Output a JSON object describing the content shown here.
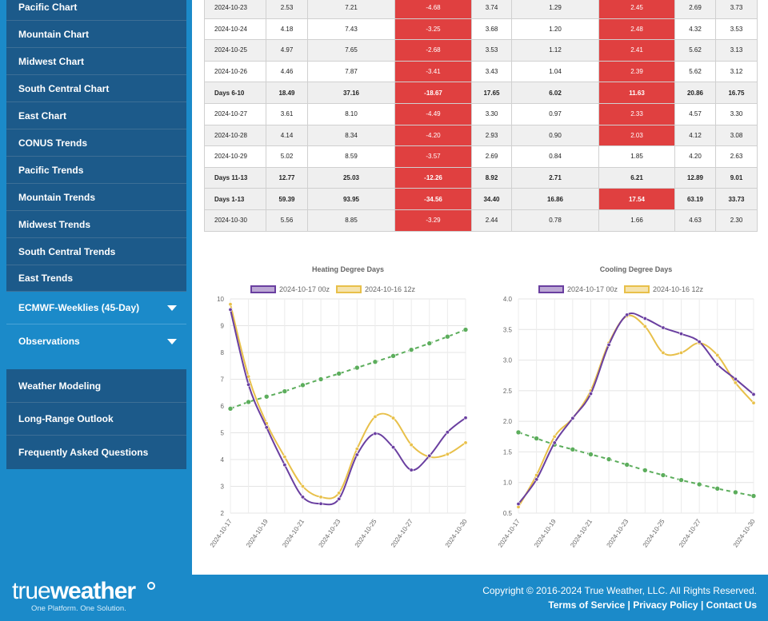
{
  "sidebar": {
    "items": [
      {
        "label": "Pacific Chart"
      },
      {
        "label": "Mountain Chart"
      },
      {
        "label": "Midwest Chart"
      },
      {
        "label": "South Central Chart"
      },
      {
        "label": "East Chart"
      },
      {
        "label": "CONUS Trends"
      },
      {
        "label": "Pacific Trends"
      },
      {
        "label": "Mountain Trends"
      },
      {
        "label": "Midwest Trends"
      },
      {
        "label": "South Central Trends"
      },
      {
        "label": "East Trends"
      }
    ],
    "sections": [
      {
        "label": "ECMWF-Weeklies (45-Day)"
      },
      {
        "label": "Observations"
      }
    ],
    "links": [
      {
        "label": "Weather Modeling"
      },
      {
        "label": "Long-Range Outlook"
      },
      {
        "label": "Frequently Asked Questions"
      }
    ]
  },
  "table": {
    "rows": [
      {
        "cells": [
          "2024-10-23",
          "2.53",
          "7.21",
          "-4.68",
          "3.74",
          "1.29",
          "2.45",
          "2.69",
          "3.73"
        ],
        "red": [
          3,
          6
        ],
        "summary": false
      },
      {
        "cells": [
          "2024-10-24",
          "4.18",
          "7.43",
          "-3.25",
          "3.68",
          "1.20",
          "2.48",
          "4.32",
          "3.53"
        ],
        "red": [
          3,
          6
        ],
        "summary": false
      },
      {
        "cells": [
          "2024-10-25",
          "4.97",
          "7.65",
          "-2.68",
          "3.53",
          "1.12",
          "2.41",
          "5.62",
          "3.13"
        ],
        "red": [
          3,
          6
        ],
        "summary": false
      },
      {
        "cells": [
          "2024-10-26",
          "4.46",
          "7.87",
          "-3.41",
          "3.43",
          "1.04",
          "2.39",
          "5.62",
          "3.12"
        ],
        "red": [
          3,
          6
        ],
        "summary": false
      },
      {
        "cells": [
          "Days 6-10",
          "18.49",
          "37.16",
          "-18.67",
          "17.65",
          "6.02",
          "11.63",
          "20.86",
          "16.75"
        ],
        "red": [
          3,
          6
        ],
        "summary": true
      },
      {
        "cells": [
          "2024-10-27",
          "3.61",
          "8.10",
          "-4.49",
          "3.30",
          "0.97",
          "2.33",
          "4.57",
          "3.30"
        ],
        "red": [
          3,
          6
        ],
        "summary": false
      },
      {
        "cells": [
          "2024-10-28",
          "4.14",
          "8.34",
          "-4.20",
          "2.93",
          "0.90",
          "2.03",
          "4.12",
          "3.08"
        ],
        "red": [
          3,
          6
        ],
        "summary": false
      },
      {
        "cells": [
          "2024-10-29",
          "5.02",
          "8.59",
          "-3.57",
          "2.69",
          "0.84",
          "1.85",
          "4.20",
          "2.63"
        ],
        "red": [
          3
        ],
        "summary": false
      },
      {
        "cells": [
          "Days 11-13",
          "12.77",
          "25.03",
          "-12.26",
          "8.92",
          "2.71",
          "6.21",
          "12.89",
          "9.01"
        ],
        "red": [
          3
        ],
        "summary": true
      },
      {
        "cells": [
          "Days 1-13",
          "59.39",
          "93.95",
          "-34.56",
          "34.40",
          "16.86",
          "17.54",
          "63.19",
          "33.73"
        ],
        "red": [
          3,
          6
        ],
        "summary": true
      },
      {
        "cells": [
          "2024-10-30",
          "5.56",
          "8.85",
          "-3.29",
          "2.44",
          "0.78",
          "1.66",
          "4.63",
          "2.30"
        ],
        "red": [
          3
        ],
        "summary": false
      }
    ]
  },
  "colors": {
    "purple": "#6a3fa0",
    "yellow": "#e8c04a",
    "green": "#5cad5c",
    "red": "#e04040",
    "sidebar_dark": "#1c5a8a",
    "brand_blue": "#1b8ac9"
  },
  "chart_data": [
    {
      "type": "line",
      "title": "Heating Degree Days",
      "x": [
        "2024-10-17",
        "2024-10-18",
        "2024-10-19",
        "2024-10-20",
        "2024-10-21",
        "2024-10-22",
        "2024-10-23",
        "2024-10-24",
        "2024-10-25",
        "2024-10-26",
        "2024-10-27",
        "2024-10-28",
        "2024-10-29",
        "2024-10-30"
      ],
      "xticks": [
        "2024-10-17",
        "2024-10-19",
        "2024-10-21",
        "2024-10-23",
        "2024-10-25",
        "2024-10-27",
        "2024-10-30"
      ],
      "ylim": [
        2,
        10
      ],
      "yticks": [
        2,
        3,
        4,
        5,
        6,
        7,
        8,
        9,
        10
      ],
      "series": [
        {
          "name": "2024-10-17 00z",
          "color": "#6a3fa0",
          "dashed": false,
          "values": [
            9.6,
            6.8,
            5.2,
            3.8,
            2.6,
            2.35,
            2.53,
            4.18,
            4.97,
            4.46,
            3.61,
            4.14,
            5.02,
            5.56
          ]
        },
        {
          "name": "2024-10-16 12z",
          "color": "#e8c04a",
          "dashed": false,
          "values": [
            9.8,
            7.1,
            5.35,
            4.1,
            3.0,
            2.6,
            2.75,
            4.4,
            5.6,
            5.55,
            4.55,
            4.1,
            4.2,
            4.63
          ]
        },
        {
          "color": "#5cad5c",
          "dashed": true,
          "values": [
            5.9,
            6.15,
            6.35,
            6.55,
            6.78,
            7.0,
            7.21,
            7.43,
            7.65,
            7.87,
            8.1,
            8.34,
            8.59,
            8.85
          ]
        }
      ],
      "legend": "top"
    },
    {
      "type": "line",
      "title": "Cooling Degree Days",
      "x": [
        "2024-10-17",
        "2024-10-18",
        "2024-10-19",
        "2024-10-20",
        "2024-10-21",
        "2024-10-22",
        "2024-10-23",
        "2024-10-24",
        "2024-10-25",
        "2024-10-26",
        "2024-10-27",
        "2024-10-28",
        "2024-10-29",
        "2024-10-30"
      ],
      "xticks": [
        "2024-10-17",
        "2024-10-19",
        "2024-10-21",
        "2024-10-23",
        "2024-10-25",
        "2024-10-27",
        "2024-10-30"
      ],
      "ylim": [
        0.5,
        4.0
      ],
      "yticks": [
        0.5,
        1.0,
        1.5,
        2.0,
        2.5,
        3.0,
        3.5,
        4.0
      ],
      "series": [
        {
          "name": "2024-10-17 00z",
          "color": "#6a3fa0",
          "dashed": false,
          "values": [
            0.65,
            1.05,
            1.65,
            2.05,
            2.45,
            3.25,
            3.74,
            3.68,
            3.53,
            3.43,
            3.3,
            2.93,
            2.69,
            2.44
          ]
        },
        {
          "name": "2024-10-16 12z",
          "color": "#e8c04a",
          "dashed": false,
          "values": [
            0.6,
            1.12,
            1.75,
            2.05,
            2.5,
            3.28,
            3.72,
            3.55,
            3.12,
            3.12,
            3.28,
            3.08,
            2.63,
            2.3
          ]
        },
        {
          "color": "#5cad5c",
          "dashed": true,
          "values": [
            1.82,
            1.72,
            1.62,
            1.54,
            1.46,
            1.38,
            1.29,
            1.2,
            1.12,
            1.04,
            0.97,
            0.9,
            0.84,
            0.78
          ]
        }
      ],
      "legend": "top"
    }
  ],
  "footer": {
    "logo_light": "true",
    "logo_bold": "weather",
    "tagline": "One Platform. One Solution.",
    "copyright": "Copyright © 2016-2024 True Weather, LLC. All Rights Reserved.",
    "terms": "Terms of Service",
    "privacy": "Privacy Policy",
    "contact": "Contact Us",
    "sep": "|"
  }
}
